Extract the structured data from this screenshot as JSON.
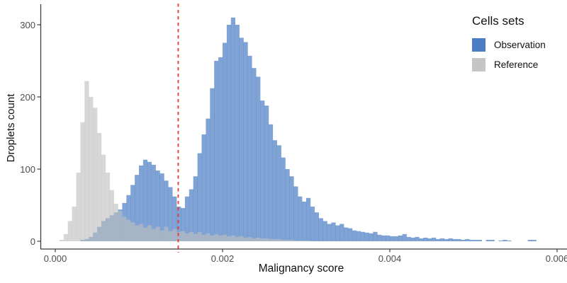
{
  "chart_data": {
    "type": "bar",
    "subtype": "overlaid-histogram",
    "title": "",
    "xlabel": "Malignancy score",
    "ylabel": "Droplets count",
    "xlim": [
      0,
      0.006
    ],
    "ylim": [
      0,
      320
    ],
    "grid": "off",
    "x_tick_values": [
      0,
      0.002,
      0.004,
      0.006
    ],
    "x_tick_labels": [
      "0.000",
      "0.002",
      "0.004",
      "0.006"
    ],
    "y_tick_values": [
      0,
      100,
      200,
      300
    ],
    "y_tick_labels": [
      "0",
      "100",
      "200",
      "300"
    ],
    "bin_start": 0,
    "bin_width": 5e-05,
    "legend": {
      "title": "Cells sets",
      "position": "top-right",
      "entries": [
        "Observation",
        "Reference"
      ]
    },
    "threshold_line": {
      "x": 0.00147,
      "orientation": "vertical",
      "style": "dashed",
      "color": "#e8382f"
    },
    "colors": {
      "axis": "#3c3c3c",
      "tick_label": "#4d4d4d",
      "axis_title": "#111111",
      "background": "#ffffff"
    },
    "series": [
      {
        "name": "Observation",
        "legend_color": "#4a7dc2",
        "fill": "rgba(74,125,194,0.71)",
        "counts": [
          0,
          0,
          0,
          0,
          0,
          0,
          2,
          3,
          6,
          12,
          20,
          28,
          32,
          36,
          40,
          44,
          53,
          64,
          78,
          92,
          105,
          113,
          110,
          106,
          98,
          94,
          84,
          75,
          62,
          48,
          46,
          62,
          72,
          90,
          122,
          148,
          170,
          212,
          250,
          255,
          275,
          300,
          310,
          300,
          282,
          276,
          257,
          240,
          228,
          195,
          188,
          162,
          140,
          133,
          116,
          100,
          90,
          76,
          62,
          55,
          60,
          48,
          40,
          32,
          28,
          24,
          26,
          22,
          24,
          19,
          18,
          15,
          14,
          13,
          12,
          11,
          13,
          9,
          8,
          8,
          7,
          7,
          8,
          10,
          6,
          5,
          6,
          4,
          5,
          4,
          5,
          3,
          4,
          3,
          4,
          3,
          3,
          2,
          3,
          2,
          2,
          2,
          0,
          2,
          2,
          0,
          1,
          2,
          1,
          0,
          0,
          0,
          0,
          2,
          2,
          0,
          0,
          0,
          0,
          0
        ]
      },
      {
        "name": "Reference",
        "legend_color": "#c5c5c5",
        "fill": "rgba(190,190,190,0.62)",
        "counts": [
          0,
          2,
          10,
          28,
          48,
          95,
          165,
          222,
          200,
          185,
          150,
          120,
          95,
          71,
          52,
          42,
          34,
          30,
          26,
          22,
          24,
          19,
          22,
          17,
          20,
          15,
          20,
          14,
          17,
          13,
          14,
          11,
          13,
          10,
          13,
          9,
          11,
          8,
          10,
          8,
          9,
          7,
          8,
          6,
          7,
          5,
          6,
          4,
          5,
          4,
          4,
          3,
          3,
          3,
          2,
          2,
          2,
          1,
          1,
          1,
          1,
          0,
          0,
          0,
          0,
          0,
          0,
          0,
          0,
          0,
          0,
          0,
          0,
          0,
          0,
          0,
          0,
          0,
          0,
          0,
          0,
          0,
          0,
          0,
          0,
          0,
          0,
          0,
          0,
          0,
          0,
          0,
          0,
          0,
          0,
          0,
          0,
          0,
          0,
          0,
          0,
          0,
          0,
          0,
          0,
          0,
          0,
          0,
          0,
          0,
          0,
          0,
          0,
          0,
          0,
          0,
          0,
          0,
          0,
          0
        ]
      }
    ]
  }
}
